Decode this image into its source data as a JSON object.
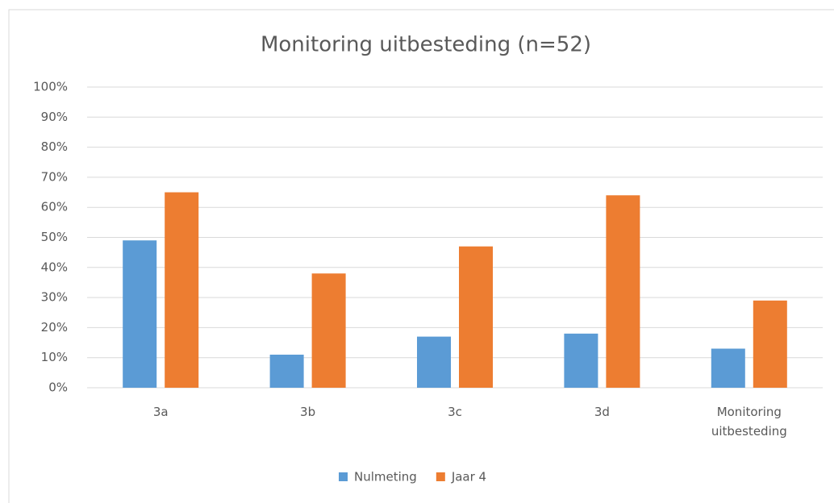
{
  "chart_data": {
    "type": "bar",
    "title": "Monitoring uitbesteding (n=52)",
    "categories": [
      "3a",
      "3b",
      "3c",
      "3d",
      "Monitoring uitbesteding"
    ],
    "series": [
      {
        "name": "Nulmeting",
        "color": "#5b9bd5",
        "values": [
          49,
          11,
          17,
          18,
          13
        ]
      },
      {
        "name": "Jaar 4",
        "color": "#ed7d31",
        "values": [
          65,
          38,
          47,
          64,
          29
        ]
      }
    ],
    "ylim": [
      0,
      100
    ],
    "yticks": [
      {
        "value": 0,
        "label": "0%"
      },
      {
        "value": 10,
        "label": "10%"
      },
      {
        "value": 20,
        "label": "20%"
      },
      {
        "value": 30,
        "label": "30%"
      },
      {
        "value": 40,
        "label": "40%"
      },
      {
        "value": 50,
        "label": "50%"
      },
      {
        "value": 60,
        "label": "60%"
      },
      {
        "value": 70,
        "label": "70%"
      },
      {
        "value": 80,
        "label": "80%"
      },
      {
        "value": 90,
        "label": "90%"
      },
      {
        "value": 100,
        "label": "100%"
      }
    ],
    "grid": true,
    "legend": "bottom"
  }
}
